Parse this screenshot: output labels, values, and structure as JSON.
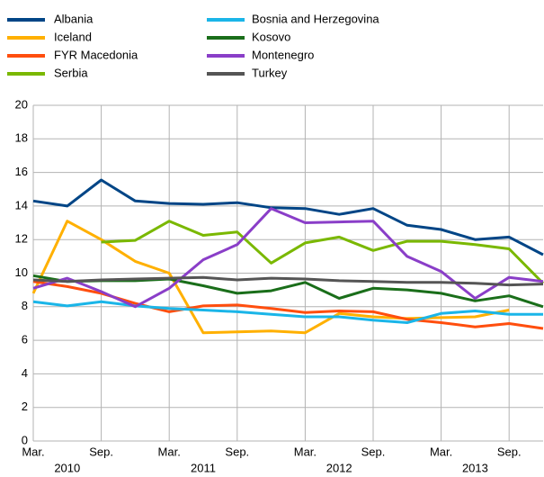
{
  "chart_data": {
    "type": "line",
    "categories": [
      "Mar.",
      null,
      "Sep.",
      null,
      "Mar.",
      null,
      "Sep.",
      null,
      "Mar.",
      null,
      "Sep.",
      null,
      "Mar.",
      null,
      "Sep.",
      null
    ],
    "years": [
      "2010",
      "2011",
      "2012",
      "2013"
    ],
    "ylim": [
      0,
      20
    ],
    "yticks": [
      0,
      2,
      4,
      6,
      8,
      10,
      12,
      14,
      16,
      18,
      20
    ],
    "grid": true,
    "series": [
      {
        "name": "Albania",
        "color": "#004586",
        "values": [
          14.3,
          14.0,
          15.55,
          14.3,
          14.15,
          14.1,
          14.2,
          13.9,
          13.85,
          13.5,
          13.85,
          12.85,
          12.6,
          12.0,
          12.15,
          11.1
        ]
      },
      {
        "name": "Iceland",
        "color": "#ffb000",
        "values": [
          8.8,
          13.1,
          12.0,
          10.7,
          10.0,
          6.45,
          6.5,
          6.55,
          6.45,
          7.6,
          7.4,
          7.3,
          7.35,
          7.4,
          7.8,
          null
        ]
      },
      {
        "name": "FYR Macedonia",
        "color": "#ff4e0e",
        "values": [
          9.5,
          9.2,
          8.8,
          8.2,
          7.7,
          8.05,
          8.1,
          7.9,
          7.65,
          7.75,
          7.7,
          7.25,
          7.05,
          6.8,
          7.0,
          6.7
        ]
      },
      {
        "name": "Serbia",
        "color": "#7ab800",
        "values": [
          null,
          null,
          11.85,
          11.95,
          13.1,
          12.25,
          12.45,
          10.6,
          11.8,
          12.15,
          11.35,
          11.9,
          11.9,
          11.7,
          11.45,
          9.4
        ]
      },
      {
        "name": "Bosnia and Herzegovina",
        "color": "#1ab5e8",
        "values": [
          8.3,
          8.05,
          8.3,
          8.05,
          7.9,
          7.8,
          7.7,
          7.55,
          7.4,
          7.4,
          7.2,
          7.05,
          7.6,
          7.75,
          7.55,
          7.55
        ]
      },
      {
        "name": "Kosovo",
        "color": "#1a6e1a",
        "values": [
          9.85,
          9.5,
          9.55,
          9.55,
          9.65,
          9.25,
          8.8,
          8.95,
          9.45,
          8.5,
          9.1,
          9.0,
          8.8,
          8.35,
          8.65,
          8.0
        ]
      },
      {
        "name": "Montenegro",
        "color": "#8a3ec8",
        "values": [
          9.1,
          9.7,
          8.9,
          8.0,
          9.1,
          10.8,
          11.7,
          13.85,
          13.0,
          13.05,
          13.1,
          11.0,
          10.1,
          8.5,
          9.75,
          9.5
        ]
      },
      {
        "name": "Turkey",
        "color": "#555555",
        "values": [
          9.6,
          9.5,
          9.6,
          9.65,
          9.7,
          9.75,
          9.6,
          9.7,
          9.65,
          9.55,
          9.5,
          9.45,
          9.45,
          9.4,
          9.3,
          9.35
        ]
      }
    ]
  }
}
